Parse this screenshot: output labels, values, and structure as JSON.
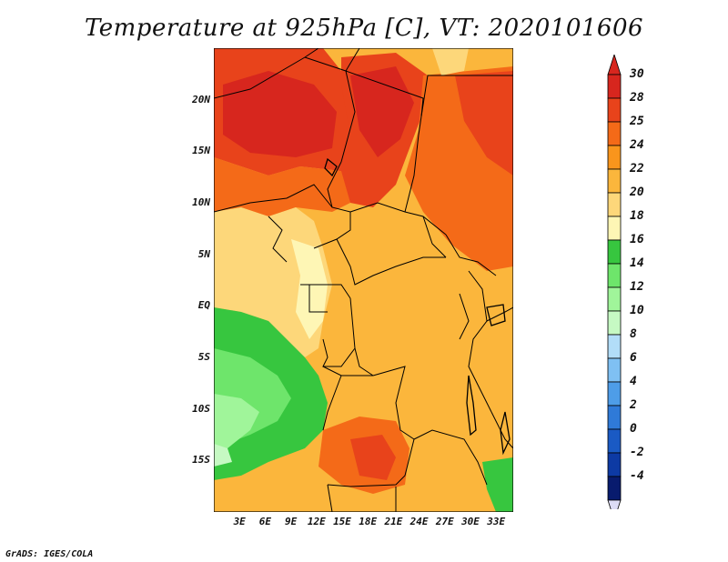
{
  "title": "Temperature at 925hPa [C], VT: 2020101606",
  "credit": "GrADS: IGES/COLA",
  "lat_ticks": [
    {
      "label": "20N",
      "deg": 20
    },
    {
      "label": "15N",
      "deg": 15
    },
    {
      "label": "10N",
      "deg": 10
    },
    {
      "label": "5N",
      "deg": 5
    },
    {
      "label": "EQ",
      "deg": 0
    },
    {
      "label": "5S",
      "deg": -5
    },
    {
      "label": "10S",
      "deg": -10
    },
    {
      "label": "15S",
      "deg": -15
    }
  ],
  "lon_ticks": [
    {
      "label": "3E",
      "deg": 3
    },
    {
      "label": "6E",
      "deg": 6
    },
    {
      "label": "9E",
      "deg": 9
    },
    {
      "label": "12E",
      "deg": 12
    },
    {
      "label": "15E",
      "deg": 15
    },
    {
      "label": "18E",
      "deg": 18
    },
    {
      "label": "21E",
      "deg": 21
    },
    {
      "label": "24E",
      "deg": 24
    },
    {
      "label": "27E",
      "deg": 27
    },
    {
      "label": "30E",
      "deg": 30
    },
    {
      "label": "33E",
      "deg": 33
    }
  ],
  "extent": {
    "lon_min": 0,
    "lon_max": 35,
    "lat_min": -20,
    "lat_max": 25
  },
  "colorbar": {
    "levels": [
      "30",
      "28",
      "25",
      "24",
      "22",
      "20",
      "18",
      "16",
      "14",
      "12",
      "10",
      "8",
      "6",
      "4",
      "2",
      "0",
      "-2",
      "-4"
    ],
    "colors": [
      "#d7261e",
      "#e8431b",
      "#f46a18",
      "#f9951c",
      "#fbb63c",
      "#fdd77a",
      "#fef6b5",
      "#37c63f",
      "#6ee56b",
      "#a0f59a",
      "#c6f9c3",
      "#b2ddf8",
      "#7fc0f3",
      "#4e9de8",
      "#2f7ad8",
      "#1a5ac4",
      "#0d3aa4",
      "#081b6e"
    ],
    "top_color": "#d7261e",
    "bottom_color": "#dcdcf5"
  }
}
